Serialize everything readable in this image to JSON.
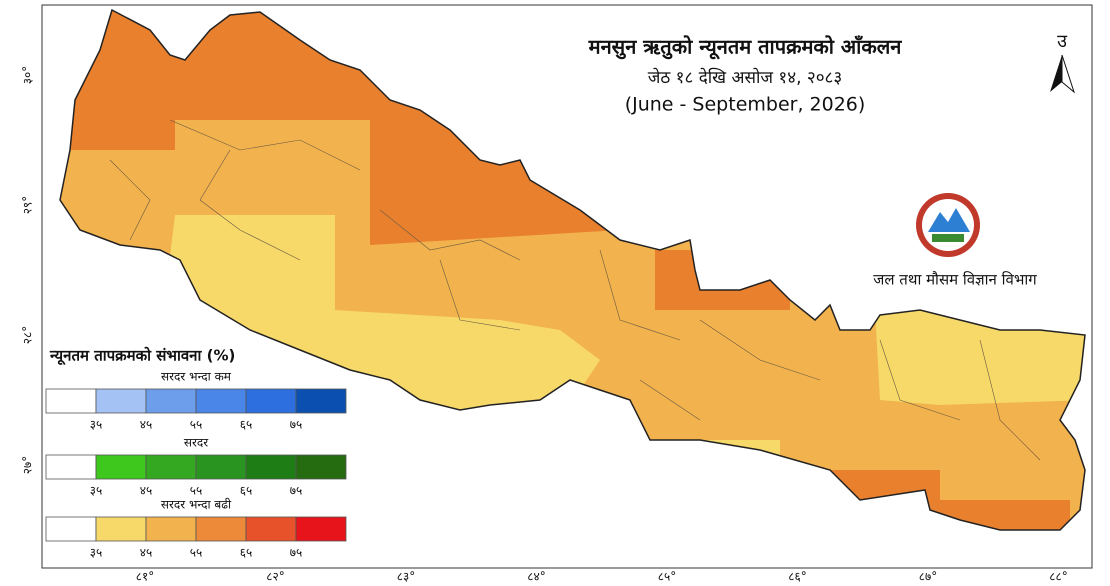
{
  "title": "मनसुन ऋतुको न्यूनतम  तापक्रमको आँकलन",
  "subtitle": "जेठ १८ देखि असोज १४, २०८३",
  "period": "(June - September, 2026)",
  "north": "उ",
  "agency": "जल तथा मौसम विज्ञान विभाग",
  "legend": {
    "title": "न्यूनतम तापक्रमको संभावना (%)",
    "groups": [
      {
        "name": "सरदर भन्दा कम",
        "colors": [
          "#ffffff",
          "#a4c2f4",
          "#6d9eeb",
          "#4a86e8",
          "#2e6fe0",
          "#0b4fb0"
        ],
        "ticks": [
          "३५",
          "४५",
          "५५",
          "६५",
          "७५"
        ]
      },
      {
        "name": "सरदर",
        "colors": [
          "#ffffff",
          "#3ec71d",
          "#33a820",
          "#2a9420",
          "#1f7d16",
          "#256b10"
        ],
        "ticks": [
          "३५",
          "४५",
          "५५",
          "६५",
          "७५"
        ]
      },
      {
        "name": "सरदर भन्दा बढी",
        "colors": [
          "#ffffff",
          "#f7d96a",
          "#f2b24e",
          "#ec8a3a",
          "#e8522a",
          "#e8141b"
        ],
        "ticks": [
          "३५",
          "४५",
          "५५",
          "६५",
          "७५"
        ]
      }
    ]
  },
  "longitudes": [
    "८१°",
    "८२°",
    "८३°",
    "८४°",
    "८५°",
    "८६°",
    "८७°",
    "८८°"
  ],
  "latitudes": [
    "३०°",
    "२९°",
    "२८°",
    "२७°"
  ]
}
